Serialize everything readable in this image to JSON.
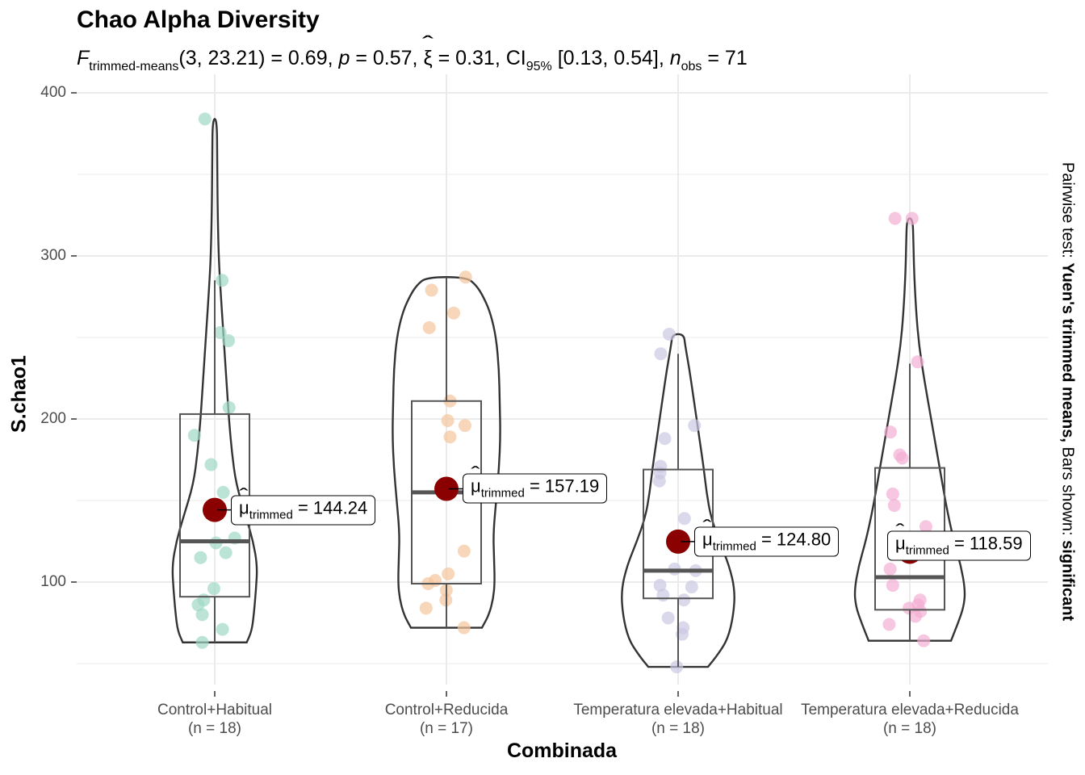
{
  "chart": {
    "title": "Chao Alpha Diversity",
    "subtitle": {
      "stat_symbol": "F",
      "stat_sub": "trimmed-means",
      "df": "(3, 23.21)",
      "stat_value": "= 0.69,",
      "p_symbol": "p",
      "p_value": "= 0.57,",
      "effect_symbol": "ξ",
      "effect_value": "= 0.31,",
      "ci_label": "CI",
      "ci_sub": "95%",
      "ci_value": "[0.13, 0.54],",
      "n_symbol": "n",
      "n_sub": "obs",
      "n_value": "= 71"
    },
    "ylabel": "S.chao1",
    "xlabel": "Combinada",
    "caption": {
      "prefix": "Pairwise test: ",
      "test": "Yuen's trimmed means,",
      "middle": " Bars shown: ",
      "bars": "significant"
    },
    "mean_label_symbol": "μ",
    "mean_label_sub": "trimmed"
  },
  "chart_data": {
    "type": "violin-box-scatter",
    "ylim": [
      35,
      400
    ],
    "yticks": [
      100,
      200,
      300,
      400
    ],
    "grid": true,
    "colors": {
      "mean_point": "#8b0000",
      "outline": "#333333",
      "grid": "#ebebeb"
    },
    "groups": [
      {
        "label": "Control+Habitual",
        "n_label": "(n = 18)",
        "color": "#9fd9c4",
        "trimmed_mean": 144.24,
        "mean_text": "= 144.24",
        "box": {
          "q1": 91,
          "median": 125,
          "q3": 203,
          "whisker_low": 63,
          "whisker_high": 285
        },
        "violin": {
          "min": 63,
          "max": 384,
          "profile": [
            [
              63,
              0.45
            ],
            [
              70,
              0.52
            ],
            [
              80,
              0.55
            ],
            [
              95,
              0.58
            ],
            [
              110,
              0.6
            ],
            [
              125,
              0.54
            ],
            [
              140,
              0.44
            ],
            [
              160,
              0.3
            ],
            [
              180,
              0.24
            ],
            [
              200,
              0.2
            ],
            [
              220,
              0.17
            ],
            [
              240,
              0.14
            ],
            [
              260,
              0.11
            ],
            [
              280,
              0.08
            ],
            [
              300,
              0.055
            ],
            [
              330,
              0.04
            ],
            [
              360,
              0.035
            ],
            [
              384,
              0.03
            ]
          ]
        },
        "points": [
          63,
          71,
          80,
          86,
          89,
          96,
          115,
          118,
          124,
          127,
          155,
          172,
          190,
          207,
          248,
          253,
          285,
          384
        ]
      },
      {
        "label": "Control+Reducida",
        "n_label": "(n = 17)",
        "color": "#f4c49d",
        "trimmed_mean": 157.19,
        "mean_text": "= 157.19",
        "box": {
          "q1": 99,
          "median": 155,
          "q3": 211,
          "whisker_low": 72,
          "whisker_high": 287
        },
        "violin": {
          "min": 72,
          "max": 287,
          "profile": [
            [
              72,
              0.5
            ],
            [
              80,
              0.6
            ],
            [
              90,
              0.66
            ],
            [
              100,
              0.68
            ],
            [
              115,
              0.67
            ],
            [
              130,
              0.66
            ],
            [
              150,
              0.7
            ],
            [
              170,
              0.74
            ],
            [
              190,
              0.76
            ],
            [
              210,
              0.75
            ],
            [
              230,
              0.74
            ],
            [
              250,
              0.7
            ],
            [
              265,
              0.62
            ],
            [
              275,
              0.52
            ],
            [
              282,
              0.42
            ],
            [
              287,
              0.28
            ]
          ]
        },
        "points": [
          72,
          84,
          89,
          95,
          99,
          101,
          105,
          119,
          154,
          189,
          196,
          199,
          211,
          256,
          265,
          279,
          287
        ]
      },
      {
        "label": "Temperatura elevada+Habitual",
        "n_label": "(n = 18)",
        "color": "#cbc8e3",
        "trimmed_mean": 124.8,
        "mean_text": "= 124.80",
        "box": {
          "q1": 90,
          "median": 107,
          "q3": 169,
          "whisker_low": 48,
          "whisker_high": 240
        },
        "violin": {
          "min": 48,
          "max": 252,
          "profile": [
            [
              48,
              0.42
            ],
            [
              55,
              0.55
            ],
            [
              65,
              0.7
            ],
            [
              80,
              0.78
            ],
            [
              95,
              0.8
            ],
            [
              110,
              0.72
            ],
            [
              125,
              0.58
            ],
            [
              140,
              0.46
            ],
            [
              155,
              0.4
            ],
            [
              170,
              0.36
            ],
            [
              185,
              0.31
            ],
            [
              200,
              0.26
            ],
            [
              215,
              0.21
            ],
            [
              230,
              0.16
            ],
            [
              245,
              0.1
            ],
            [
              252,
              0.08
            ]
          ]
        },
        "points": [
          48,
          68,
          72,
          78,
          89,
          92,
          97,
          98,
          107,
          108,
          139,
          162,
          167,
          171,
          188,
          196,
          240,
          252
        ]
      },
      {
        "label": "Temperatura elevada+Reducida",
        "n_label": "(n = 18)",
        "color": "#f4aed3",
        "trimmed_mean": 118.59,
        "mean_text": "= 118.59",
        "box": {
          "q1": 83,
          "median": 103,
          "q3": 170,
          "whisker_low": 64,
          "whisker_high": 234
        },
        "violin": {
          "min": 64,
          "max": 323,
          "profile": [
            [
              64,
              0.58
            ],
            [
              75,
              0.68
            ],
            [
              85,
              0.76
            ],
            [
              95,
              0.78
            ],
            [
              110,
              0.72
            ],
            [
              125,
              0.62
            ],
            [
              145,
              0.52
            ],
            [
              165,
              0.44
            ],
            [
              185,
              0.36
            ],
            [
              205,
              0.28
            ],
            [
              225,
              0.2
            ],
            [
              245,
              0.13
            ],
            [
              265,
              0.09
            ],
            [
              290,
              0.06
            ],
            [
              310,
              0.05
            ],
            [
              323,
              0.04
            ]
          ]
        },
        "points": [
          64,
          74,
          79,
          82,
          84,
          86,
          89,
          98,
          108,
          134,
          147,
          154,
          176,
          178,
          192,
          235,
          323,
          323
        ]
      }
    ]
  }
}
